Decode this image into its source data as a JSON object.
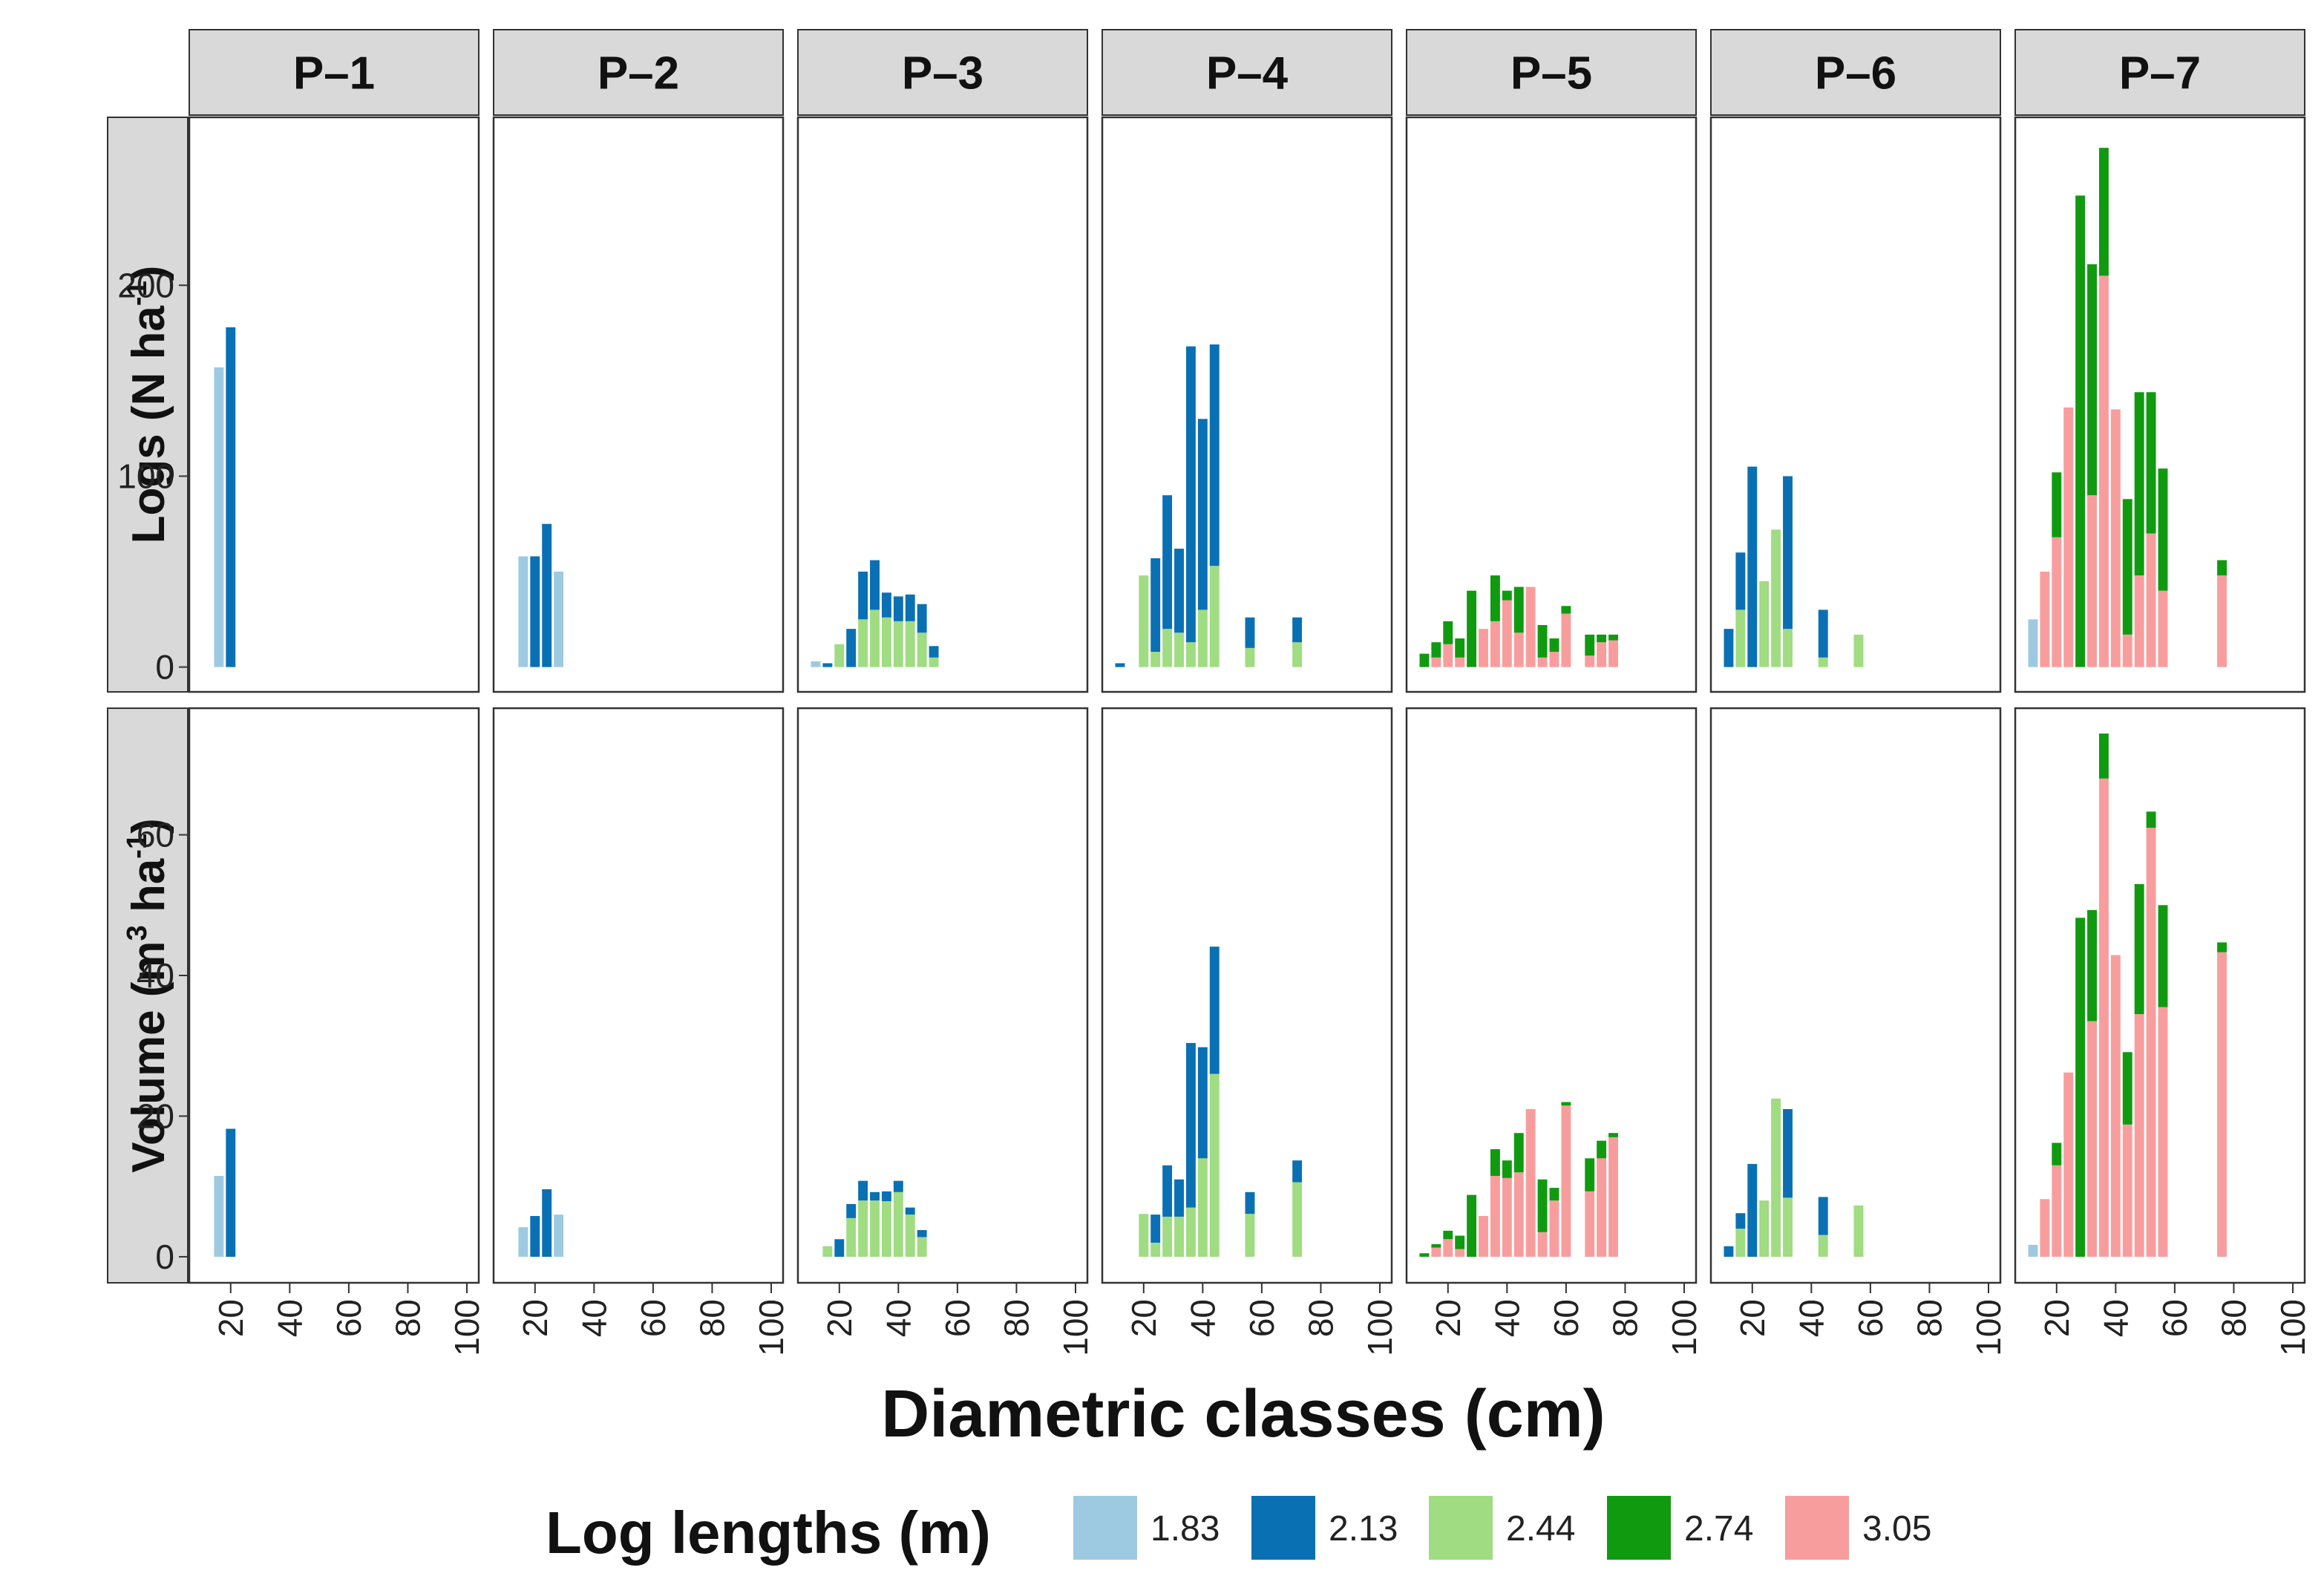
{
  "chart_data": {
    "type": "bar",
    "stacked": true,
    "facet_cols": [
      "P–1",
      "P–2",
      "P–3",
      "P–4",
      "P–5",
      "P–6",
      "P–7"
    ],
    "x_label": "Diametric classes (cm)",
    "x_ticks": [
      "20",
      "40",
      "60",
      "80",
      "100"
    ],
    "x_range": [
      10,
      100
    ],
    "bar_width_cm": 4,
    "legend": {
      "title": "Log lengths (m)",
      "position": "bottom",
      "keys": [
        "1.83",
        "2.13",
        "2.44",
        "2.74",
        "3.05"
      ],
      "colors": [
        "#9ecae1",
        "#0a70b4",
        "#a0dc82",
        "#109a10",
        "#f89d9d"
      ]
    },
    "stack_order_bottom_to_top": [
      "3.05",
      "2.44",
      "1.83",
      "2.74",
      "2.13"
    ],
    "rows": [
      {
        "id": "logs",
        "y_label_main": "Logs (N ha",
        "y_label_sup": "-1",
        "y_label_end": ")",
        "y_range": [
          -13,
          288
        ],
        "y_ticks": [
          0,
          100,
          200
        ],
        "panels": [
          [
            {
              "x": 16,
              "2.13": 0,
              "1.83": 157
            },
            {
              "x": 20,
              "2.13": 178
            }
          ],
          [
            {
              "x": 16,
              "1.83": 58
            },
            {
              "x": 20,
              "2.13": 58
            },
            {
              "x": 24,
              "2.13": 75
            },
            {
              "x": 28,
              "1.83": 50
            }
          ],
          [
            {
              "x": 12,
              "1.83": 3
            },
            {
              "x": 16,
              "2.13": 2
            },
            {
              "x": 20,
              "2.44": 12
            },
            {
              "x": 24,
              "2.13": 20
            },
            {
              "x": 28,
              "2.44": 25,
              "2.13": 25
            },
            {
              "x": 32,
              "2.44": 30,
              "2.13": 26
            },
            {
              "x": 36,
              "2.44": 26,
              "2.13": 13
            },
            {
              "x": 40,
              "2.44": 24,
              "2.13": 13
            },
            {
              "x": 44,
              "2.44": 24,
              "2.13": 14
            },
            {
              "x": 48,
              "2.44": 18,
              "2.13": 15
            },
            {
              "x": 52,
              "2.44": 5,
              "2.13": 6
            }
          ],
          [
            {
              "x": 12,
              "2.13": 2
            },
            {
              "x": 20,
              "2.44": 48
            },
            {
              "x": 24,
              "2.44": 8,
              "2.13": 49
            },
            {
              "x": 28,
              "2.44": 20,
              "2.13": 70
            },
            {
              "x": 32,
              "2.44": 18,
              "2.13": 44
            },
            {
              "x": 36,
              "2.44": 13,
              "2.13": 155
            },
            {
              "x": 40,
              "2.44": 30,
              "2.13": 100
            },
            {
              "x": 44,
              "2.44": 53,
              "2.13": 116
            },
            {
              "x": 56,
              "2.44": 10,
              "2.13": 16
            },
            {
              "x": 72,
              "2.44": 13,
              "2.13": 13
            }
          ],
          [
            {
              "x": 12,
              "2.74": 7
            },
            {
              "x": 16,
              "3.05": 5,
              "2.74": 8
            },
            {
              "x": 20,
              "3.05": 12,
              "2.74": 12
            },
            {
              "x": 24,
              "3.05": 5,
              "2.74": 10
            },
            {
              "x": 28,
              "2.74": 40
            },
            {
              "x": 32,
              "3.05": 20
            },
            {
              "x": 36,
              "3.05": 24,
              "2.74": 24
            },
            {
              "x": 40,
              "3.05": 35,
              "2.74": 5
            },
            {
              "x": 44,
              "3.05": 18,
              "2.74": 24
            },
            {
              "x": 48,
              "3.05": 42
            },
            {
              "x": 52,
              "3.05": 5,
              "2.74": 17
            },
            {
              "x": 56,
              "3.05": 8,
              "2.74": 7
            },
            {
              "x": 60,
              "3.05": 28,
              "2.74": 4
            },
            {
              "x": 68,
              "3.05": 6,
              "2.74": 11
            },
            {
              "x": 72,
              "3.05": 13,
              "2.74": 4
            },
            {
              "x": 76,
              "3.05": 14,
              "2.74": 3
            }
          ],
          [
            {
              "x": 12,
              "2.13": 20
            },
            {
              "x": 16,
              "2.44": 30,
              "2.13": 30
            },
            {
              "x": 20,
              "2.13": 105
            },
            {
              "x": 24,
              "2.44": 45
            },
            {
              "x": 28,
              "2.44": 72
            },
            {
              "x": 32,
              "2.44": 20,
              "2.13": 80
            },
            {
              "x": 44,
              "2.44": 5,
              "2.13": 25
            },
            {
              "x": 56,
              "2.44": 17
            }
          ],
          [
            {
              "x": 12,
              "1.83": 25
            },
            {
              "x": 16,
              "3.05": 50
            },
            {
              "x": 20,
              "3.05": 68,
              "2.74": 34
            },
            {
              "x": 24,
              "3.05": 136
            },
            {
              "x": 28,
              "2.74": 247
            },
            {
              "x": 32,
              "3.05": 90,
              "2.74": 121
            },
            {
              "x": 36,
              "3.05": 205,
              "2.74": 67
            },
            {
              "x": 40,
              "3.05": 135
            },
            {
              "x": 44,
              "3.05": 17,
              "2.74": 71
            },
            {
              "x": 48,
              "3.05": 48,
              "2.74": 96
            },
            {
              "x": 52,
              "3.05": 70,
              "2.74": 74
            },
            {
              "x": 56,
              "3.05": 40,
              "2.74": 64
            },
            {
              "x": 76,
              "3.05": 48,
              "2.74": 8
            }
          ]
        ]
      },
      {
        "id": "volume",
        "y_label_main": "Volume (m",
        "y_label_sup": "3",
        "y_label_mid": " ha",
        "y_label_sup2": "-1",
        "y_label_end": ")",
        "y_range": [
          -3.7,
          78
        ],
        "y_ticks": [
          0,
          20,
          40,
          60
        ],
        "panels": [
          [
            {
              "x": 16,
              "1.83": 11.5
            },
            {
              "x": 20,
              "2.13": 18.2
            }
          ],
          [
            {
              "x": 16,
              "1.83": 4.2
            },
            {
              "x": 20,
              "2.13": 5.8
            },
            {
              "x": 24,
              "2.13": 9.6
            },
            {
              "x": 28,
              "1.83": 6.0
            }
          ],
          [
            {
              "x": 16,
              "2.44": 1.5
            },
            {
              "x": 20,
              "2.13": 2.5
            },
            {
              "x": 24,
              "2.44": 5.5,
              "2.13": 2.0
            },
            {
              "x": 28,
              "2.44": 8.0,
              "2.13": 2.8
            },
            {
              "x": 32,
              "2.44": 8.0,
              "2.13": 1.2
            },
            {
              "x": 36,
              "2.44": 7.9,
              "2.13": 1.4
            },
            {
              "x": 40,
              "2.44": 9.2,
              "2.13": 1.6
            },
            {
              "x": 44,
              "2.44": 6.0,
              "2.13": 1.0
            },
            {
              "x": 48,
              "2.44": 2.8,
              "2.13": 1.0
            }
          ],
          [
            {
              "x": 20,
              "2.44": 6.1
            },
            {
              "x": 24,
              "2.44": 2.0,
              "2.13": 4.0
            },
            {
              "x": 28,
              "2.44": 5.7,
              "2.13": 7.3
            },
            {
              "x": 32,
              "2.44": 5.7,
              "2.13": 5.3
            },
            {
              "x": 36,
              "2.44": 7.0,
              "2.13": 23.4
            },
            {
              "x": 40,
              "2.44": 14.0,
              "2.13": 15.8
            },
            {
              "x": 44,
              "2.44": 26.0,
              "2.13": 18.1
            },
            {
              "x": 56,
              "2.44": 6.1,
              "2.13": 3.1
            },
            {
              "x": 72,
              "2.44": 10.6,
              "2.13": 3.1
            }
          ],
          [
            {
              "x": 12,
              "2.74": 0.5
            },
            {
              "x": 16,
              "3.05": 1.3,
              "2.74": 0.5
            },
            {
              "x": 20,
              "3.05": 2.5,
              "2.74": 1.2
            },
            {
              "x": 24,
              "3.05": 1.1,
              "2.74": 1.9
            },
            {
              "x": 28,
              "2.74": 8.8
            },
            {
              "x": 32,
              "3.05": 5.8
            },
            {
              "x": 36,
              "3.05": 11.5,
              "2.74": 3.8
            },
            {
              "x": 40,
              "3.05": 11.2,
              "2.74": 2.5
            },
            {
              "x": 44,
              "3.05": 12.0,
              "2.74": 5.6
            },
            {
              "x": 48,
              "3.05": 21.0
            },
            {
              "x": 52,
              "3.05": 3.5,
              "2.74": 7.5
            },
            {
              "x": 56,
              "3.05": 8.0,
              "2.74": 1.8
            },
            {
              "x": 60,
              "3.05": 21.5,
              "2.74": 0.5
            },
            {
              "x": 68,
              "3.05": 9.3,
              "2.74": 4.7
            },
            {
              "x": 72,
              "3.05": 14.0,
              "2.74": 2.5
            },
            {
              "x": 76,
              "3.05": 17.0,
              "2.74": 0.6
            }
          ],
          [
            {
              "x": 12,
              "2.13": 1.5
            },
            {
              "x": 16,
              "2.44": 4.0,
              "2.13": 2.2
            },
            {
              "x": 20,
              "2.13": 13.2
            },
            {
              "x": 24,
              "2.44": 8.0
            },
            {
              "x": 28,
              "2.44": 22.5
            },
            {
              "x": 32,
              "2.44": 8.4,
              "2.13": 12.6
            },
            {
              "x": 44,
              "2.44": 3.1,
              "2.13": 5.4
            },
            {
              "x": 56,
              "2.44": 7.3
            }
          ],
          [
            {
              "x": 12,
              "1.83": 1.7
            },
            {
              "x": 16,
              "3.05": 8.2
            },
            {
              "x": 20,
              "3.05": 13.0,
              "2.74": 3.2
            },
            {
              "x": 24,
              "3.05": 26.2
            },
            {
              "x": 28,
              "2.74": 48.2
            },
            {
              "x": 32,
              "3.05": 33.5,
              "2.74": 15.8
            },
            {
              "x": 36,
              "3.05": 68.0,
              "2.74": 6.4
            },
            {
              "x": 40,
              "3.05": 42.9
            },
            {
              "x": 44,
              "3.05": 18.8,
              "2.74": 10.3
            },
            {
              "x": 48,
              "3.05": 34.5,
              "2.74": 18.5
            },
            {
              "x": 52,
              "3.05": 61.0,
              "2.74": 2.3
            },
            {
              "x": 56,
              "3.05": 35.5,
              "2.74": 14.5
            },
            {
              "x": 76,
              "3.05": 43.3,
              "2.74": 1.4
            }
          ]
        ]
      }
    ]
  }
}
